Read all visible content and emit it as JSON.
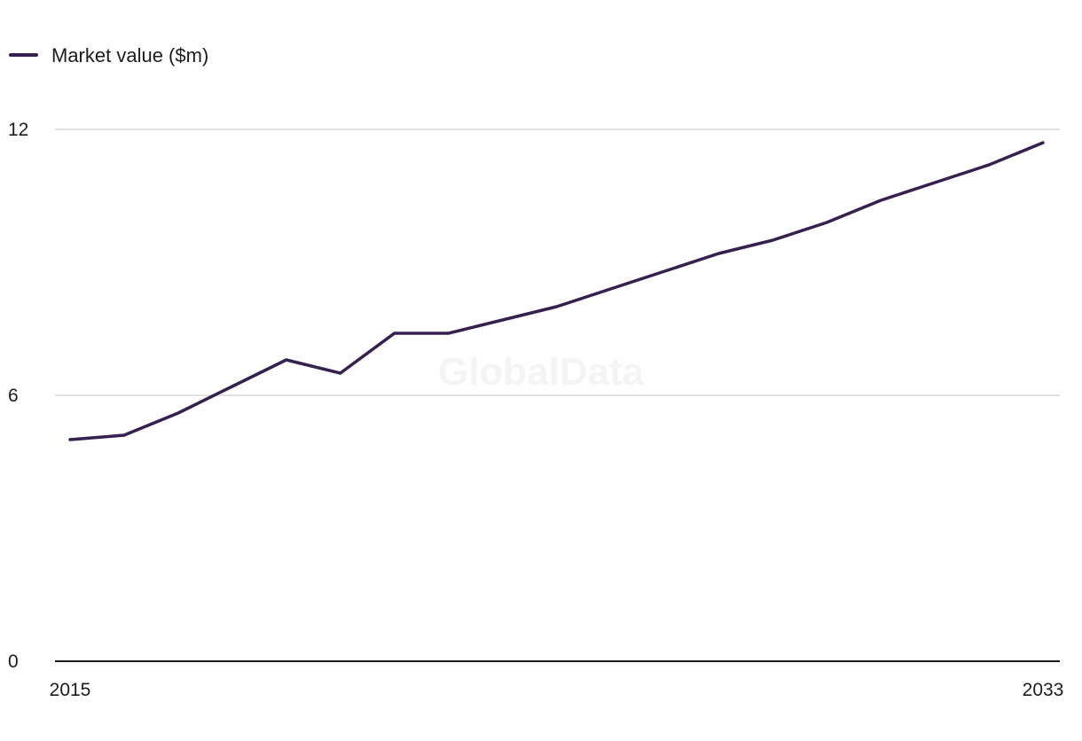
{
  "chart_data": {
    "type": "line",
    "title": "",
    "xlabel": "",
    "ylabel": "",
    "x": [
      2015,
      2016,
      2017,
      2018,
      2019,
      2020,
      2021,
      2022,
      2023,
      2024,
      2025,
      2026,
      2027,
      2028,
      2029,
      2030,
      2031,
      2032,
      2033
    ],
    "series": [
      {
        "name": "Market value ($m)",
        "color": "#35204f",
        "values": [
          5.0,
          5.1,
          5.6,
          6.2,
          6.8,
          6.5,
          7.4,
          7.4,
          7.7,
          8.0,
          8.4,
          8.8,
          9.2,
          9.5,
          9.9,
          10.4,
          10.8,
          11.2,
          11.7
        ]
      }
    ],
    "xlim": [
      2015,
      2033
    ],
    "ylim": [
      0,
      12
    ],
    "x_tick_labels": [
      "2015",
      "2033"
    ],
    "y_ticks": [
      0,
      6,
      12
    ],
    "y_tick_labels": [
      "0",
      "6",
      "12"
    ],
    "grid": true,
    "legend_position": "top-left",
    "watermark": "GlobalData"
  },
  "colors": {
    "line": "#35204f",
    "grid": "#d9d9dd",
    "axis": "#1c1c1c",
    "text": "#1c1c1c",
    "watermark": "#f4f4f6"
  }
}
